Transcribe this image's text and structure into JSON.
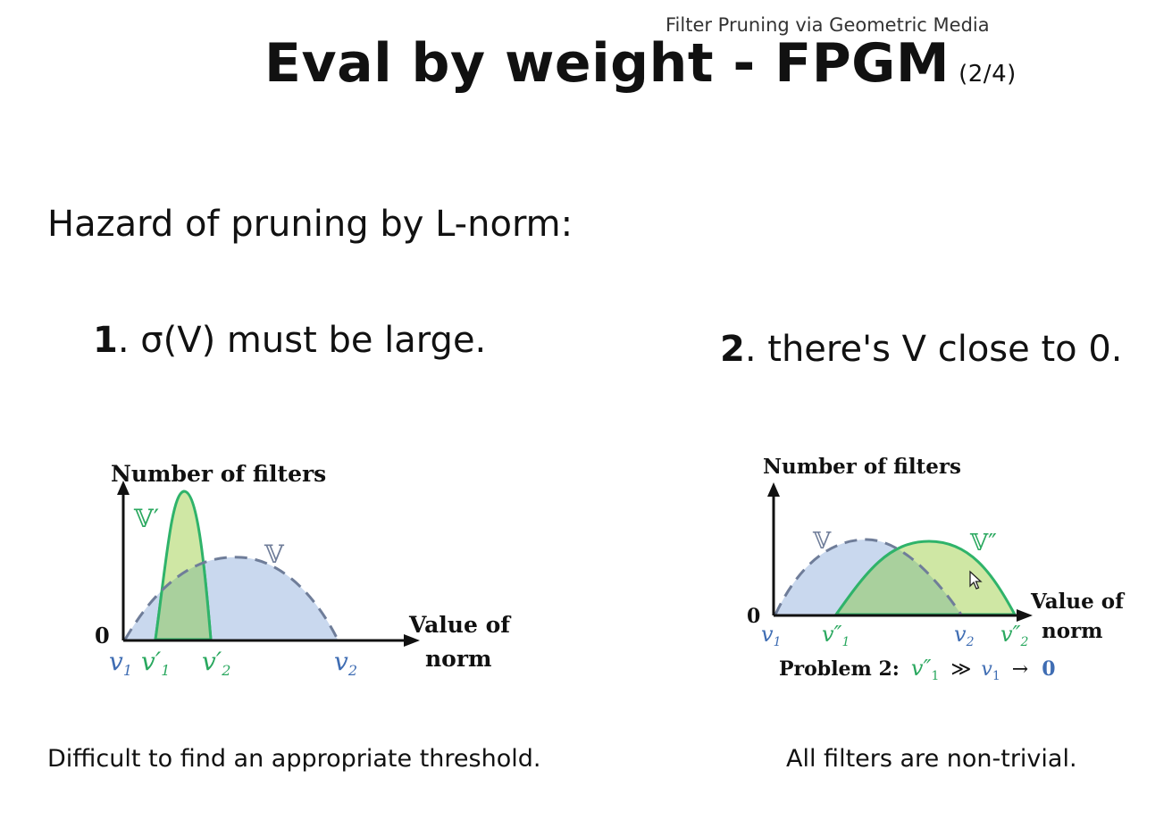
{
  "header": {
    "subtitle": "Filter Pruning via Geometric Media",
    "title": "Eval by weight - FPGM",
    "title_page": "(2/4)"
  },
  "main": {
    "heading": "Hazard of pruning by L-norm:",
    "points": [
      {
        "number": "1",
        "text": ". σ(V) must be large."
      },
      {
        "number": "2",
        "text": ". there's V close to 0."
      }
    ],
    "captions": [
      "Difficult to find an appropriate threshold.",
      "All filters are non-trivial."
    ]
  },
  "figure1": {
    "y_label": "Number of filters",
    "x_label_line1": "Value of",
    "x_label_line2": "norm",
    "origin": "0",
    "set_v": "𝕍",
    "set_v_prime": "𝕍′",
    "v1": "v",
    "v1_sub": "1",
    "v1_prime": "v′",
    "v1_prime_sub": "1",
    "v2_prime": "v′",
    "v2_prime_sub": "2",
    "v2": "v",
    "v2_sub": "2"
  },
  "figure2": {
    "y_label": "Number of filters",
    "x_label_line1": "Value of",
    "x_label_line2": "norm",
    "origin": "0",
    "set_v": "𝕍",
    "set_v_dprime": "𝕍″",
    "v1": "v",
    "v1_sub": "1",
    "v1_dprime": "v″",
    "v1_dprime_sub": "1",
    "v2": "v",
    "v2_sub": "2",
    "v2_dprime": "v″",
    "v2_dprime_sub": "2",
    "problem_label": "Problem 2:",
    "problem_lhs": "v″",
    "problem_lhs_sub": "1",
    "problem_op": "≫",
    "problem_rhs": "v",
    "problem_rhs_sub": "1",
    "problem_arrow": "→",
    "problem_zero": "0"
  },
  "colors": {
    "blue_fill": "#c9d8ee",
    "blue_stroke": "#6f7d99",
    "blue_text": "#3f6db3",
    "green_fill": "#cfe7a4",
    "green_stroke": "#2fb36a",
    "green_text": "#2aa85f",
    "overlap_fill": "#a9d09d"
  },
  "icons": {
    "cursor": "mouse-cursor-icon"
  }
}
